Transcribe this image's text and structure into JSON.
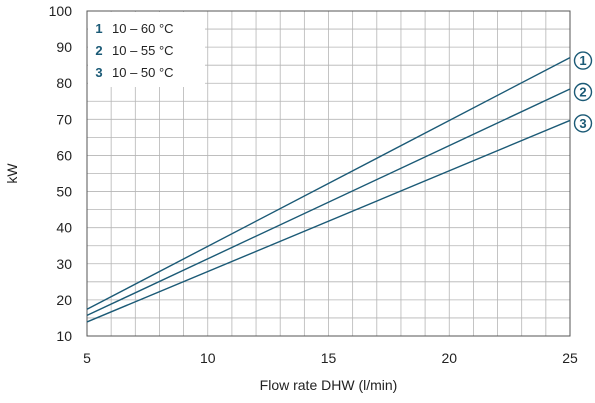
{
  "chart_data": {
    "type": "line",
    "xlabel": "Flow rate DHW (l/min)",
    "ylabel": "kW",
    "xlim": [
      5,
      25
    ],
    "ylim": [
      10,
      100
    ],
    "xticks": [
      5,
      10,
      15,
      20,
      25
    ],
    "yticks": [
      10,
      20,
      30,
      40,
      50,
      60,
      70,
      80,
      90,
      100
    ],
    "grid": true,
    "legend_position": "top-left",
    "line_color": "#1b5a76",
    "series": [
      {
        "marker": "1",
        "name": "10 – 60 °C",
        "x": [
          5,
          25
        ],
        "y": [
          17.4,
          87.1
        ]
      },
      {
        "marker": "2",
        "name": "10 – 55 °C",
        "x": [
          5,
          25
        ],
        "y": [
          15.7,
          78.4
        ]
      },
      {
        "marker": "3",
        "name": "10 – 50 °C",
        "x": [
          5,
          25
        ],
        "y": [
          13.9,
          69.7
        ]
      }
    ]
  }
}
